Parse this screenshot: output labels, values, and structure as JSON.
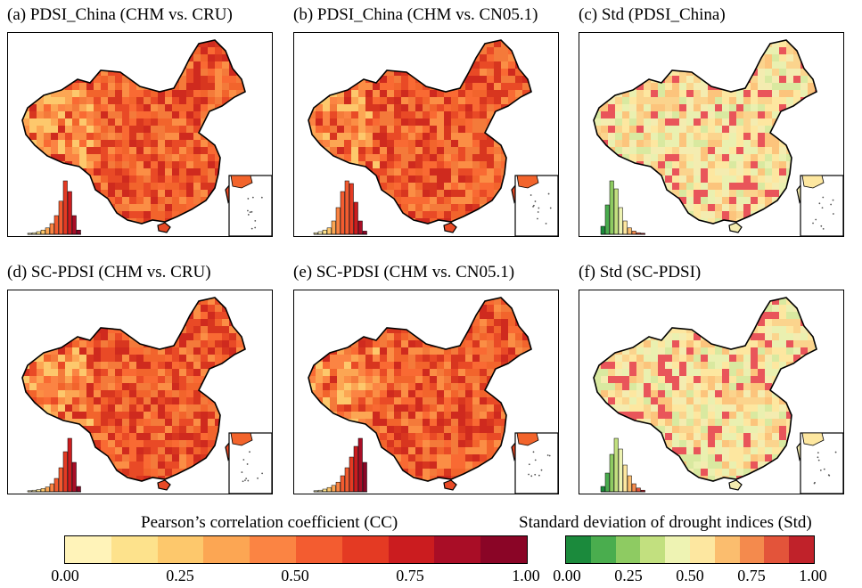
{
  "panels": [
    {
      "title": "(a) PDSI_China (CHM vs. CRU)",
      "palette": "cc",
      "hist_values": [
        0.02,
        0.03,
        0.05,
        0.08,
        0.12,
        0.2,
        0.35,
        0.62,
        1.0,
        0.8,
        0.35,
        0.08
      ]
    },
    {
      "title": "(b) PDSI_China (CHM vs. CN05.1)",
      "palette": "cc",
      "hist_values": [
        0.03,
        0.05,
        0.08,
        0.12,
        0.25,
        0.5,
        0.8,
        1.0,
        0.95,
        0.6,
        0.25,
        0.06
      ]
    },
    {
      "title": "(c) Std (PDSI_China)",
      "palette": "std",
      "hist_values": [
        0.15,
        0.55,
        1.0,
        0.85,
        0.5,
        0.25,
        0.12,
        0.06,
        0.03,
        0.02
      ]
    },
    {
      "title": "(d) SC-PDSI (CHM vs. CRU)",
      "palette": "cc",
      "hist_values": [
        0.02,
        0.03,
        0.04,
        0.06,
        0.09,
        0.15,
        0.25,
        0.45,
        0.75,
        1.0,
        0.55,
        0.1
      ]
    },
    {
      "title": "(e) SC-PDSI (CHM vs. CN05.1)",
      "palette": "cc",
      "hist_values": [
        0.02,
        0.03,
        0.05,
        0.08,
        0.12,
        0.18,
        0.3,
        0.45,
        0.65,
        0.85,
        1.0,
        0.55
      ]
    },
    {
      "title": "(f) Std (SC-PDSI)",
      "palette": "std",
      "hist_values": [
        0.1,
        0.35,
        0.7,
        1.0,
        0.8,
        0.5,
        0.3,
        0.15,
        0.07,
        0.03
      ]
    }
  ],
  "colorbars": [
    {
      "title": "Pearson’s correlation coefficient (CC)",
      "ticks": [
        "0.00",
        "0.25",
        "0.50",
        "0.75",
        "1.00"
      ],
      "colors": [
        "#fff3b9",
        "#fde28c",
        "#fdc86c",
        "#fca653",
        "#fb8443",
        "#f35c30",
        "#e43a23",
        "#cb1c1f",
        "#a90d26",
        "#8a0526"
      ]
    },
    {
      "title": "Standard deviation of drought indices (Std)",
      "ticks": [
        "0.00",
        "0.25",
        "0.50",
        "0.75",
        "1.00"
      ],
      "colors": [
        "#1b8a3c",
        "#4aad4e",
        "#8ecb62",
        "#c2e07f",
        "#eef3b3",
        "#fde7a0",
        "#fbbd6e",
        "#f48a4d",
        "#e3543a",
        "#c0222a"
      ]
    }
  ]
}
